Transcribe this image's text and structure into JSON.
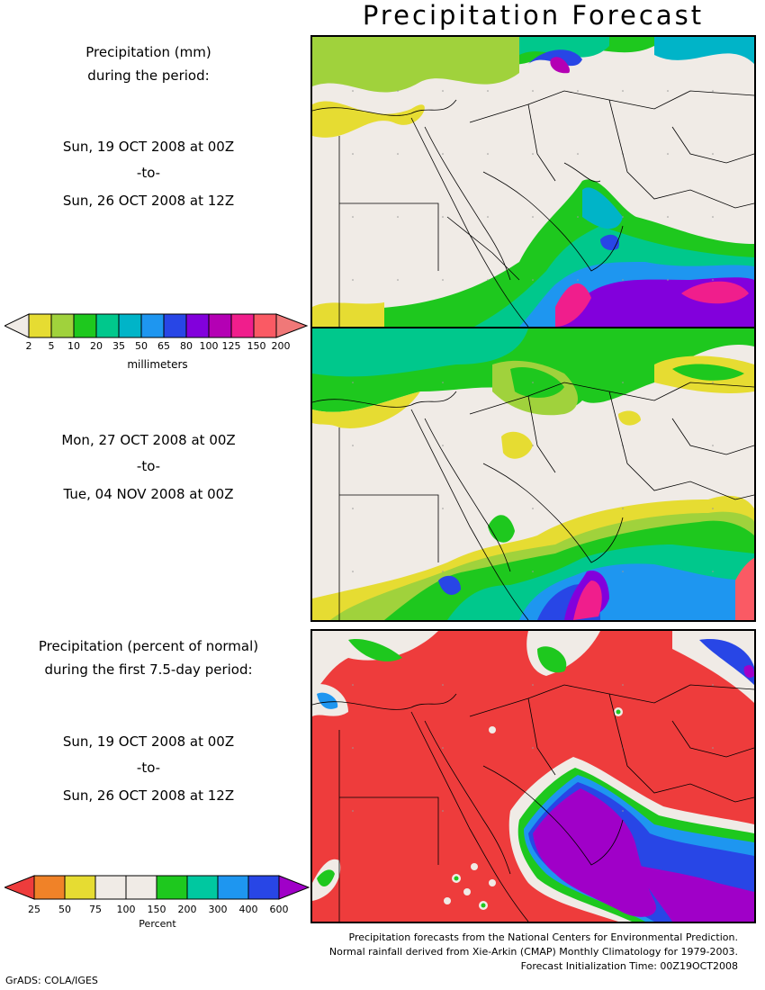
{
  "title": "Precipitation Forecast",
  "panel1": {
    "heading": [
      "Precipitation (mm)",
      "during the period:"
    ],
    "period": [
      "Sun, 19 OCT 2008 at 00Z",
      "-to-",
      "Sun, 26 OCT 2008 at 12Z"
    ]
  },
  "panel2": {
    "period": [
      "Mon, 27 OCT 2008 at 00Z",
      "-to-",
      "Tue, 04 NOV 2008 at 00Z"
    ]
  },
  "panel3": {
    "heading": [
      "Precipitation (percent of normal)",
      "during the first 7.5-day period:"
    ],
    "period": [
      "Sun, 19 OCT 2008 at 00Z",
      "-to-",
      "Sun, 26 OCT 2008 at 12Z"
    ]
  },
  "colorbar_mm": {
    "unit": "millimeters",
    "ticks": [
      "2",
      "5",
      "10",
      "20",
      "35",
      "50",
      "65",
      "80",
      "100",
      "125",
      "150",
      "200"
    ],
    "colors": [
      "#f0ebe6",
      "#e6dc32",
      "#a0d23c",
      "#1ec81e",
      "#00c88c",
      "#00b4c8",
      "#1e96f0",
      "#2846e6",
      "#8200dc",
      "#b400b4",
      "#f01e8c",
      "#fa5a64",
      "#f07878"
    ]
  },
  "colorbar_pct": {
    "unit": "Percent",
    "ticks": [
      "25",
      "50",
      "75",
      "100",
      "150",
      "200",
      "300",
      "400",
      "600"
    ],
    "colors": [
      "#ee3c3c",
      "#f08228",
      "#e6dc32",
      "#f0ebe6",
      "#f0ebe6",
      "#1ec81e",
      "#00c8a0",
      "#1e96f0",
      "#2846e6",
      "#a000c8"
    ]
  },
  "footer": [
    "Precipitation forecasts from the National Centers for Environmental Prediction.",
    "Normal rainfall derived from Xie-Arkin (CMAP) Monthly Climatology for 1979-2003.",
    "Forecast Initialization Time: 00Z19OCT2008"
  ],
  "credit": "GrADS: COLA/IGES"
}
